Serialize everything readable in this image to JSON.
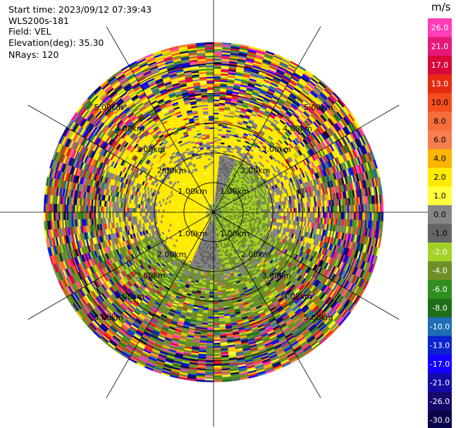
{
  "header": {
    "start_time": "Start time: 2023/09/12 07:39:43",
    "instrument": "WLS200s-181",
    "field": "Field: VEL",
    "elevation": "Elevation(deg): 35.30",
    "nrays": "NRays: 120"
  },
  "chart_data": {
    "type": "heatmap",
    "projection": "polar-ppi",
    "field": "VEL",
    "unit": "m/s",
    "nrays": 120,
    "range_rings_km": [
      1.0,
      2.0,
      3.0,
      4.0,
      5.0
    ],
    "range_ring_labels": [
      "1.00km",
      "2.00km",
      "3.00km",
      "4.00km",
      "5.00km"
    ],
    "max_range_km": 5.7,
    "spoke_angles_deg": [
      0,
      30,
      60,
      90,
      120,
      150,
      180,
      210,
      240,
      270,
      300,
      330
    ],
    "colorbar": {
      "ticks": [
        "26.0",
        "21.0",
        "17.0",
        "13.0",
        "10.0",
        "8.0",
        "6.0",
        "4.0",
        "2.0",
        "1.0",
        "0.0",
        "-1.0",
        "-2.0",
        "-4.0",
        "-6.0",
        "-8.0",
        "-10.0",
        "-13.0",
        "-17.0",
        "-21.0",
        "-26.0",
        "-30.0"
      ],
      "colors": [
        "#ff3db8",
        "#e8187a",
        "#d9083a",
        "#e62a12",
        "#f44e1e",
        "#f76e3a",
        "#f77f4f",
        "#fbb400",
        "#ffea00",
        "#ffff3c",
        "#858585",
        "#656565",
        "#a4d227",
        "#6e8f28",
        "#308f20",
        "#1f6e1a",
        "#1e6db5",
        "#0b22ce",
        "#1500ff",
        "#150aa6",
        "#130a6a",
        "#09054a"
      ]
    },
    "structure": {
      "near_range_km": [
        0.0,
        1.9
      ],
      "near_pattern": "yellow (+1 to +2 m/s) on west half, green (-2 to -4 m/s) on east half, grey (~0 m/s) band along boundary",
      "mid_range_km": [
        1.9,
        3.8
      ],
      "mid_pattern": "mostly yellow north, olive green south, grey transition, increasing noisy speckle",
      "far_range_km": [
        3.8,
        5.7
      ],
      "far_pattern": "random multicolour noise across full velocity scale"
    }
  }
}
